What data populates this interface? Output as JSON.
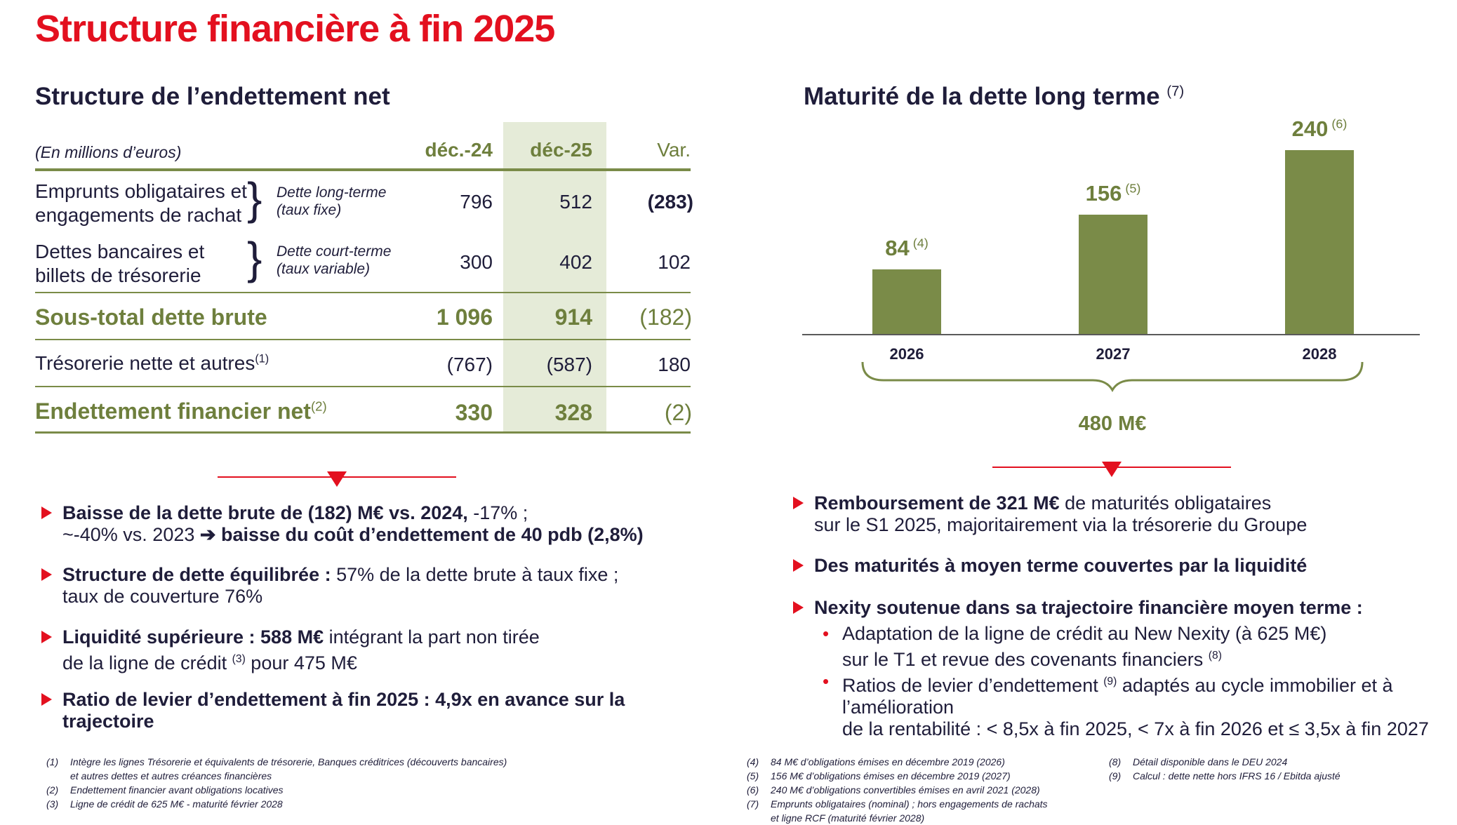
{
  "title": "Structure financière à fin 2025",
  "left": {
    "heading": "Structure de l’endettement net",
    "unit": "(En millions d’euros)",
    "col1": "déc.-24",
    "col2": "déc-25",
    "col3": "Var.",
    "rows": [
      {
        "label1": "Emprunts obligataires et",
        "label2": "engagements de rachat",
        "sub1": "Dette long-terme",
        "sub2": "(taux fixe)",
        "v1": "796",
        "v2": "512",
        "v3": "(283)"
      },
      {
        "label1": "Dettes bancaires et",
        "label2": "billets de trésorerie",
        "sub1": "Dette court-terme",
        "sub2": "(taux variable)",
        "v1": "300",
        "v2": "402",
        "v3": "102"
      }
    ],
    "subtotal": {
      "label": "Sous-total dette brute",
      "v1": "1 096",
      "v2": "914",
      "v3": "(182)"
    },
    "treso": {
      "label": "Trésorerie nette et autres",
      "sup": "(1)",
      "v1": "(767)",
      "v2": "(587)",
      "v3": "180"
    },
    "net": {
      "label": "Endettement financier net",
      "sup": "(2)",
      "v1": "330",
      "v2": "328",
      "v3": "(2)"
    },
    "bullets": {
      "b1_bold": "Baisse de la dette brute de (182) M€ vs. 2024,",
      "b1_rest": " -17% ;",
      "b1_l2a": "~-40% vs. 2023 ",
      "b1_arrow": "➔",
      "b1_l2b": " baisse du coût d’endettement de 40 pdb (2,8%)",
      "b2_bold": "Structure de dette équilibrée :",
      "b2_rest": " 57% de la dette brute à taux fixe ;",
      "b2_l2": "taux de couverture 76%",
      "b3_bold": "Liquidité supérieure : 588 M€",
      "b3_rest": " intégrant la part non tirée",
      "b3_l2a": "de la ligne de crédit ",
      "b3_sup": "(3)",
      "b3_l2b": " pour 475 M€",
      "b4_l1": "Ratio de levier d’endettement à fin 2025 : 4,9x en avance sur la",
      "b4_l2": "trajectoire"
    },
    "notes": {
      "n1": "(1)",
      "n1a": "Intègre les lignes Trésorerie et équivalents de trésorerie, Banques créditrices (découverts bancaires)",
      "n1b": "et autres dettes et autres créances financières",
      "n2": "(2)",
      "n2a": "Endettement financier avant obligations locatives",
      "n3": "(3)",
      "n3a": "Ligne de crédit de 625 M€ - maturité février 2028"
    }
  },
  "right": {
    "heading": "Maturité de la dette long terme",
    "heading_sup": "(7)",
    "total": "480 M€",
    "bullets": {
      "b1_bold": "Remboursement  de 321 M€",
      "b1_rest": " de maturités obligataires",
      "b1_l2": "sur le S1 2025, majoritairement via la trésorerie du Groupe",
      "b2": "Des maturités à moyen terme couvertes par la liquidité",
      "b3": "Nexity soutenue dans sa trajectoire financière moyen terme :",
      "s1_l1": "Adaptation de la ligne de crédit au New Nexity (à 625 M€)",
      "s1_l2": "sur le T1 et revue des covenants financiers ",
      "s1_sup": "(8)",
      "s2_l1a": "Ratios de levier d’endettement ",
      "s2_sup": "(9)",
      "s2_l1b": " adaptés au cycle immobilier et à",
      "s2_l2": "l’amélioration",
      "s2_l3": "de la rentabilité : < 8,5x à fin 2025, < 7x à fin 2026 et ≤ 3,5x à fin 2027",
      "dot": "•"
    },
    "notes": {
      "n4": "(4)",
      "n4a": "84 M€ d’obligations émises en décembre 2019 (2026)",
      "n5": "(5)",
      "n5a": "156 M€ d’obligations émises en décembre 2019 (2027)",
      "n6": "(6)",
      "n6a": "240 M€ d’obligations convertibles émises en avril 2021 (2028)",
      "n7": "(7)",
      "n7a": "Emprunts obligataires (nominal) ; hors engagements de rachats",
      "n7b": "et ligne RCF (maturité février 2028)",
      "n8": "(8)",
      "n8a": "Détail disponible dans le DEU 2024",
      "n9": "(9)",
      "n9a": "Calcul : dette nette hors IFRS 16 / Ebitda ajusté"
    }
  },
  "chart_data": {
    "type": "bar",
    "title": "Maturité de la dette long terme (7)",
    "categories": [
      "2026",
      "2027",
      "2028"
    ],
    "values": [
      84,
      156,
      240
    ],
    "value_labels": [
      "84",
      "156",
      "240"
    ],
    "value_notes": [
      "(4)",
      "(5)",
      "(6)"
    ],
    "total_label": "480 M€",
    "unit": "M€",
    "ylim": [
      0,
      240
    ],
    "color": "#7a8b48"
  },
  "colors": {
    "accent": "#e3101f",
    "green": "#7a8b48",
    "text": "#1f1d3a",
    "highlight": "#e5ebd8"
  }
}
